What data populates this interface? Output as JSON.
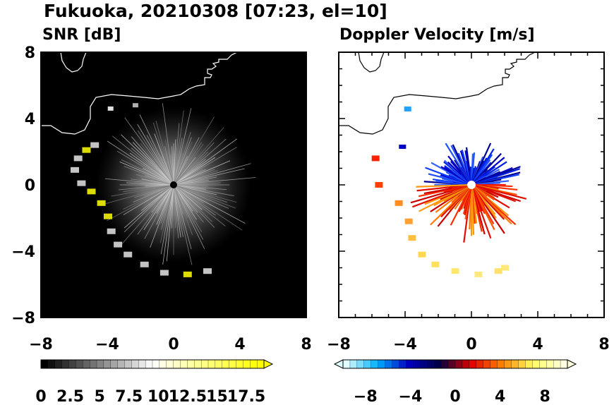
{
  "header": {
    "title": "Fukuoka, 20210308 [07:23, el=10]"
  },
  "chart_data": [
    {
      "type": "heatmap",
      "title": "SNR [dB]",
      "xlim": [
        -8,
        8
      ],
      "ylim": [
        -8,
        8
      ],
      "x_ticks": [
        "−8",
        "−4",
        "0",
        "4",
        "8"
      ],
      "y_ticks": [
        "8",
        "4",
        "0",
        "−4",
        "−8"
      ],
      "background": "#000000",
      "colorbar": {
        "range": [
          0,
          19
        ],
        "extend": "max",
        "tick_labels": [
          "0",
          "2.5",
          "5",
          "7.5",
          "10",
          "12.5",
          "15",
          "17.5"
        ],
        "tick_values": [
          0,
          2.5,
          5,
          7.5,
          10,
          12.5,
          15,
          17.5
        ],
        "colors": [
          "#000000",
          "#ffffff",
          "#ffff00"
        ]
      }
    },
    {
      "type": "heatmap",
      "title": "Doppler Velocity [m/s]",
      "xlim": [
        -8,
        8
      ],
      "ylim": [
        -8,
        8
      ],
      "x_ticks": [
        "−8",
        "−4",
        "0",
        "4",
        "8"
      ],
      "y_ticks": [
        "8",
        "4",
        "0",
        "−4",
        "−8"
      ],
      "background": "#ffffff",
      "colorbar": {
        "range": [
          -10,
          10
        ],
        "extend": "both",
        "tick_labels": [
          "−8",
          "−4",
          "0",
          "4",
          "8"
        ],
        "tick_values": [
          -8,
          -4,
          0,
          4,
          8
        ],
        "colors": [
          "#e0ffff",
          "#00b0ff",
          "#0000c0",
          "#000040",
          "#e00000",
          "#ff8000",
          "#ffff60",
          "#ffffe0"
        ]
      }
    }
  ]
}
